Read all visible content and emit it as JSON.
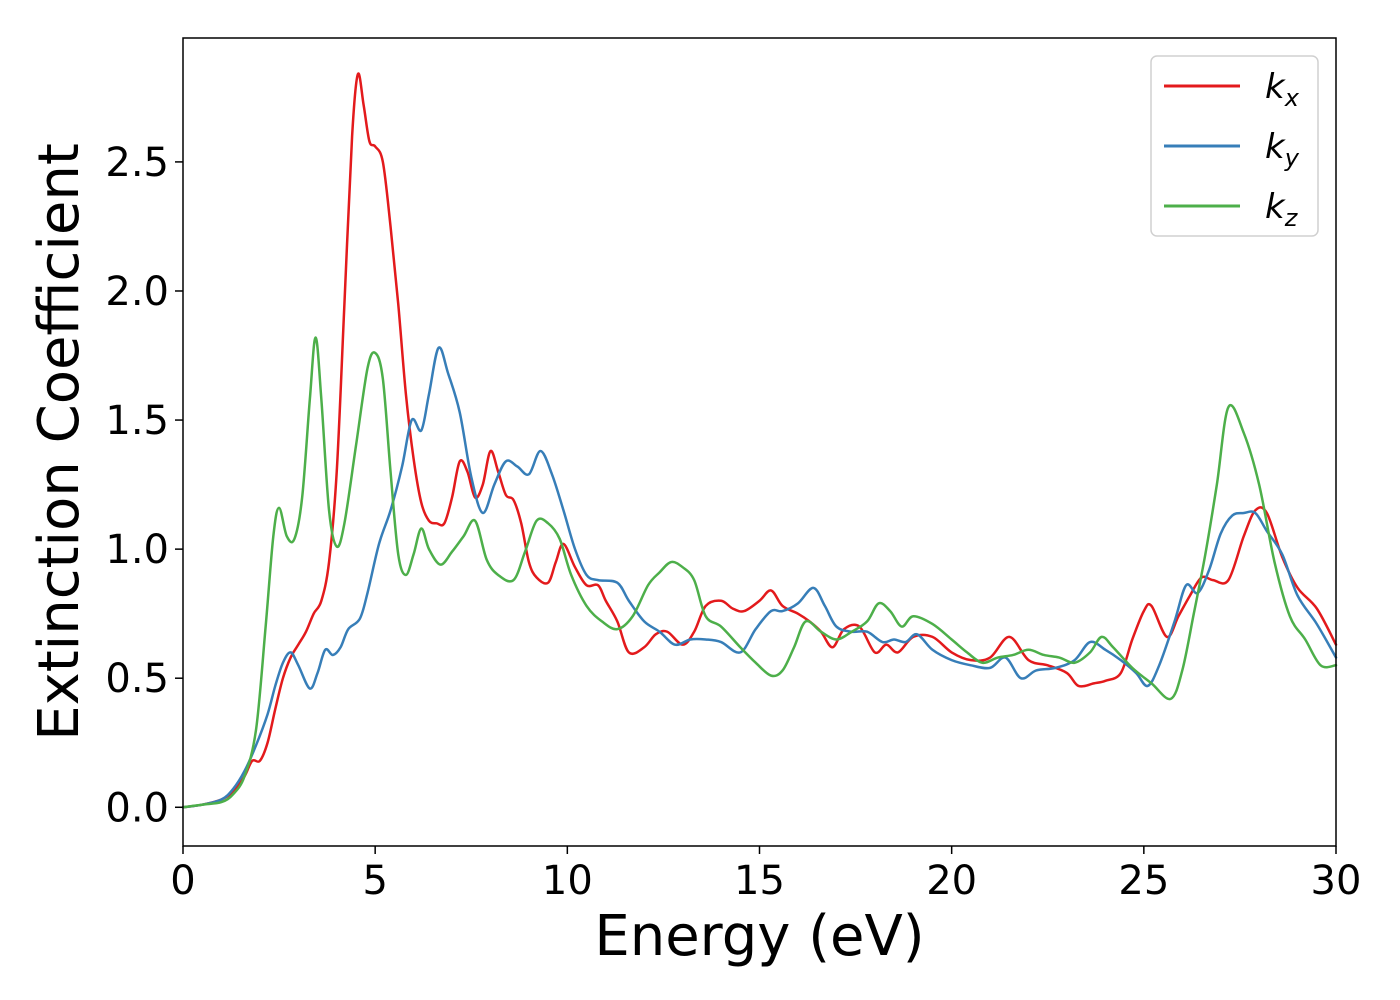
{
  "chart_data": {
    "type": "line",
    "title": "",
    "xlabel": "Energy (eV)",
    "ylabel": "Extinction Coefficient",
    "xlim": [
      0,
      30
    ],
    "ylim": [
      -0.15,
      2.98
    ],
    "x_ticks": [
      0,
      5,
      10,
      15,
      20,
      25,
      30
    ],
    "y_ticks": [
      0.0,
      0.5,
      1.0,
      1.5,
      2.0,
      2.5
    ],
    "x_tick_labels": [
      "0",
      "5",
      "10",
      "15",
      "20",
      "25",
      "30"
    ],
    "y_tick_labels": [
      "0.0",
      "0.5",
      "1.0",
      "1.5",
      "2.0",
      "2.5"
    ],
    "grid": false,
    "legend_position": "top-right",
    "series": [
      {
        "name": "k",
        "subscript": "x",
        "color": "#e31a1c",
        "points": [
          [
            0,
            0.0
          ],
          [
            0.5,
            0.01
          ],
          [
            1.0,
            0.03
          ],
          [
            1.3,
            0.06
          ],
          [
            1.6,
            0.12
          ],
          [
            1.8,
            0.18
          ],
          [
            2.0,
            0.18
          ],
          [
            2.2,
            0.25
          ],
          [
            2.4,
            0.38
          ],
          [
            2.6,
            0.5
          ],
          [
            2.8,
            0.58
          ],
          [
            3.0,
            0.63
          ],
          [
            3.2,
            0.68
          ],
          [
            3.4,
            0.75
          ],
          [
            3.6,
            0.8
          ],
          [
            3.8,
            0.95
          ],
          [
            4.0,
            1.3
          ],
          [
            4.2,
            1.95
          ],
          [
            4.4,
            2.6
          ],
          [
            4.55,
            2.84
          ],
          [
            4.7,
            2.72
          ],
          [
            4.85,
            2.58
          ],
          [
            5.0,
            2.56
          ],
          [
            5.2,
            2.5
          ],
          [
            5.4,
            2.25
          ],
          [
            5.6,
            1.95
          ],
          [
            5.8,
            1.6
          ],
          [
            6.0,
            1.35
          ],
          [
            6.2,
            1.18
          ],
          [
            6.4,
            1.11
          ],
          [
            6.6,
            1.1
          ],
          [
            6.8,
            1.1
          ],
          [
            7.0,
            1.2
          ],
          [
            7.2,
            1.34
          ],
          [
            7.4,
            1.3
          ],
          [
            7.6,
            1.2
          ],
          [
            7.8,
            1.25
          ],
          [
            8.0,
            1.38
          ],
          [
            8.2,
            1.3
          ],
          [
            8.4,
            1.21
          ],
          [
            8.6,
            1.19
          ],
          [
            8.8,
            1.1
          ],
          [
            9.0,
            0.95
          ],
          [
            9.2,
            0.89
          ],
          [
            9.5,
            0.87
          ],
          [
            9.7,
            0.95
          ],
          [
            9.9,
            1.02
          ],
          [
            10.2,
            0.93
          ],
          [
            10.5,
            0.86
          ],
          [
            10.8,
            0.86
          ],
          [
            11.0,
            0.8
          ],
          [
            11.3,
            0.72
          ],
          [
            11.6,
            0.6
          ],
          [
            12.0,
            0.62
          ],
          [
            12.3,
            0.67
          ],
          [
            12.6,
            0.68
          ],
          [
            13.0,
            0.63
          ],
          [
            13.3,
            0.68
          ],
          [
            13.6,
            0.78
          ],
          [
            14.0,
            0.8
          ],
          [
            14.3,
            0.77
          ],
          [
            14.6,
            0.76
          ],
          [
            15.0,
            0.8
          ],
          [
            15.3,
            0.84
          ],
          [
            15.6,
            0.78
          ],
          [
            16.0,
            0.75
          ],
          [
            16.3,
            0.72
          ],
          [
            16.6,
            0.68
          ],
          [
            16.9,
            0.62
          ],
          [
            17.2,
            0.69
          ],
          [
            17.6,
            0.7
          ],
          [
            18.0,
            0.6
          ],
          [
            18.3,
            0.63
          ],
          [
            18.6,
            0.6
          ],
          [
            19.0,
            0.66
          ],
          [
            19.5,
            0.66
          ],
          [
            20.0,
            0.6
          ],
          [
            20.5,
            0.57
          ],
          [
            21.0,
            0.58
          ],
          [
            21.5,
            0.66
          ],
          [
            22.0,
            0.57
          ],
          [
            22.5,
            0.55
          ],
          [
            23.0,
            0.52
          ],
          [
            23.3,
            0.47
          ],
          [
            23.7,
            0.48
          ],
          [
            24.0,
            0.49
          ],
          [
            24.4,
            0.52
          ],
          [
            24.7,
            0.65
          ],
          [
            25.0,
            0.76
          ],
          [
            25.2,
            0.78
          ],
          [
            25.6,
            0.66
          ],
          [
            25.9,
            0.74
          ],
          [
            26.2,
            0.82
          ],
          [
            26.5,
            0.89
          ],
          [
            26.8,
            0.88
          ],
          [
            27.2,
            0.88
          ],
          [
            27.6,
            1.05
          ],
          [
            27.9,
            1.15
          ],
          [
            28.2,
            1.14
          ],
          [
            28.6,
            0.97
          ],
          [
            29.0,
            0.85
          ],
          [
            29.5,
            0.77
          ],
          [
            30.0,
            0.63
          ]
        ]
      },
      {
        "name": "k",
        "subscript": "y",
        "color": "#377eb8",
        "points": [
          [
            0,
            0.0
          ],
          [
            0.5,
            0.01
          ],
          [
            1.0,
            0.03
          ],
          [
            1.3,
            0.07
          ],
          [
            1.6,
            0.14
          ],
          [
            1.9,
            0.24
          ],
          [
            2.2,
            0.36
          ],
          [
            2.4,
            0.47
          ],
          [
            2.6,
            0.56
          ],
          [
            2.8,
            0.6
          ],
          [
            3.0,
            0.55
          ],
          [
            3.3,
            0.46
          ],
          [
            3.5,
            0.52
          ],
          [
            3.7,
            0.61
          ],
          [
            3.9,
            0.59
          ],
          [
            4.1,
            0.62
          ],
          [
            4.3,
            0.69
          ],
          [
            4.6,
            0.73
          ],
          [
            4.8,
            0.83
          ],
          [
            5.1,
            1.02
          ],
          [
            5.4,
            1.15
          ],
          [
            5.7,
            1.32
          ],
          [
            5.95,
            1.5
          ],
          [
            6.2,
            1.46
          ],
          [
            6.4,
            1.6
          ],
          [
            6.65,
            1.78
          ],
          [
            6.9,
            1.68
          ],
          [
            7.2,
            1.53
          ],
          [
            7.5,
            1.28
          ],
          [
            7.8,
            1.14
          ],
          [
            8.1,
            1.25
          ],
          [
            8.4,
            1.34
          ],
          [
            8.7,
            1.32
          ],
          [
            9.0,
            1.29
          ],
          [
            9.3,
            1.38
          ],
          [
            9.6,
            1.29
          ],
          [
            9.9,
            1.15
          ],
          [
            10.2,
            1.0
          ],
          [
            10.5,
            0.9
          ],
          [
            10.8,
            0.88
          ],
          [
            11.3,
            0.87
          ],
          [
            11.6,
            0.8
          ],
          [
            12.0,
            0.72
          ],
          [
            12.4,
            0.68
          ],
          [
            12.8,
            0.63
          ],
          [
            13.2,
            0.65
          ],
          [
            13.6,
            0.65
          ],
          [
            14.0,
            0.64
          ],
          [
            14.5,
            0.6
          ],
          [
            14.9,
            0.69
          ],
          [
            15.3,
            0.76
          ],
          [
            15.6,
            0.76
          ],
          [
            16.0,
            0.79
          ],
          [
            16.4,
            0.85
          ],
          [
            16.7,
            0.78
          ],
          [
            17.0,
            0.7
          ],
          [
            17.4,
            0.68
          ],
          [
            17.8,
            0.68
          ],
          [
            18.2,
            0.64
          ],
          [
            18.5,
            0.65
          ],
          [
            18.8,
            0.64
          ],
          [
            19.1,
            0.67
          ],
          [
            19.5,
            0.61
          ],
          [
            20.0,
            0.57
          ],
          [
            20.5,
            0.55
          ],
          [
            21.0,
            0.54
          ],
          [
            21.4,
            0.58
          ],
          [
            21.8,
            0.5
          ],
          [
            22.2,
            0.53
          ],
          [
            22.7,
            0.54
          ],
          [
            23.2,
            0.57
          ],
          [
            23.6,
            0.64
          ],
          [
            24.0,
            0.61
          ],
          [
            24.4,
            0.57
          ],
          [
            24.8,
            0.52
          ],
          [
            25.1,
            0.47
          ],
          [
            25.4,
            0.55
          ],
          [
            25.8,
            0.72
          ],
          [
            26.1,
            0.86
          ],
          [
            26.4,
            0.83
          ],
          [
            26.7,
            0.92
          ],
          [
            27.0,
            1.06
          ],
          [
            27.3,
            1.13
          ],
          [
            27.6,
            1.14
          ],
          [
            27.9,
            1.14
          ],
          [
            28.2,
            1.07
          ],
          [
            28.6,
            0.98
          ],
          [
            29.0,
            0.82
          ],
          [
            29.5,
            0.71
          ],
          [
            30.0,
            0.58
          ]
        ]
      },
      {
        "name": "k",
        "subscript": "z",
        "color": "#4daf4a",
        "points": [
          [
            0,
            0.0
          ],
          [
            0.5,
            0.01
          ],
          [
            1.0,
            0.02
          ],
          [
            1.3,
            0.05
          ],
          [
            1.6,
            0.12
          ],
          [
            1.9,
            0.3
          ],
          [
            2.15,
            0.7
          ],
          [
            2.35,
            1.05
          ],
          [
            2.5,
            1.16
          ],
          [
            2.7,
            1.05
          ],
          [
            2.9,
            1.04
          ],
          [
            3.1,
            1.2
          ],
          [
            3.3,
            1.58
          ],
          [
            3.45,
            1.82
          ],
          [
            3.6,
            1.58
          ],
          [
            3.8,
            1.15
          ],
          [
            4.0,
            1.01
          ],
          [
            4.2,
            1.1
          ],
          [
            4.5,
            1.4
          ],
          [
            4.8,
            1.7
          ],
          [
            5.0,
            1.76
          ],
          [
            5.2,
            1.66
          ],
          [
            5.4,
            1.3
          ],
          [
            5.6,
            0.98
          ],
          [
            5.8,
            0.9
          ],
          [
            6.0,
            0.98
          ],
          [
            6.2,
            1.08
          ],
          [
            6.4,
            1.0
          ],
          [
            6.7,
            0.94
          ],
          [
            7.0,
            0.99
          ],
          [
            7.3,
            1.05
          ],
          [
            7.6,
            1.11
          ],
          [
            7.9,
            0.96
          ],
          [
            8.2,
            0.9
          ],
          [
            8.6,
            0.88
          ],
          [
            8.9,
            0.99
          ],
          [
            9.2,
            1.11
          ],
          [
            9.5,
            1.1
          ],
          [
            9.8,
            1.04
          ],
          [
            10.1,
            0.9
          ],
          [
            10.5,
            0.78
          ],
          [
            10.9,
            0.72
          ],
          [
            11.3,
            0.69
          ],
          [
            11.7,
            0.74
          ],
          [
            12.1,
            0.86
          ],
          [
            12.4,
            0.91
          ],
          [
            12.7,
            0.95
          ],
          [
            13.0,
            0.93
          ],
          [
            13.3,
            0.88
          ],
          [
            13.6,
            0.74
          ],
          [
            14.0,
            0.7
          ],
          [
            14.5,
            0.62
          ],
          [
            14.9,
            0.56
          ],
          [
            15.3,
            0.51
          ],
          [
            15.6,
            0.53
          ],
          [
            15.9,
            0.62
          ],
          [
            16.2,
            0.72
          ],
          [
            16.6,
            0.68
          ],
          [
            17.0,
            0.65
          ],
          [
            17.4,
            0.68
          ],
          [
            17.8,
            0.72
          ],
          [
            18.1,
            0.79
          ],
          [
            18.4,
            0.76
          ],
          [
            18.7,
            0.7
          ],
          [
            19.0,
            0.74
          ],
          [
            19.5,
            0.71
          ],
          [
            20.0,
            0.65
          ],
          [
            20.4,
            0.6
          ],
          [
            20.8,
            0.56
          ],
          [
            21.2,
            0.58
          ],
          [
            21.6,
            0.59
          ],
          [
            22.0,
            0.61
          ],
          [
            22.4,
            0.59
          ],
          [
            22.8,
            0.58
          ],
          [
            23.2,
            0.56
          ],
          [
            23.6,
            0.6
          ],
          [
            23.9,
            0.66
          ],
          [
            24.2,
            0.62
          ],
          [
            24.7,
            0.54
          ],
          [
            25.2,
            0.48
          ],
          [
            25.7,
            0.42
          ],
          [
            26.0,
            0.53
          ],
          [
            26.3,
            0.75
          ],
          [
            26.6,
            0.98
          ],
          [
            26.9,
            1.25
          ],
          [
            27.2,
            1.55
          ],
          [
            27.6,
            1.45
          ],
          [
            28.0,
            1.25
          ],
          [
            28.4,
            0.95
          ],
          [
            28.8,
            0.74
          ],
          [
            29.2,
            0.65
          ],
          [
            29.6,
            0.55
          ],
          [
            30.0,
            0.55
          ]
        ]
      }
    ]
  }
}
